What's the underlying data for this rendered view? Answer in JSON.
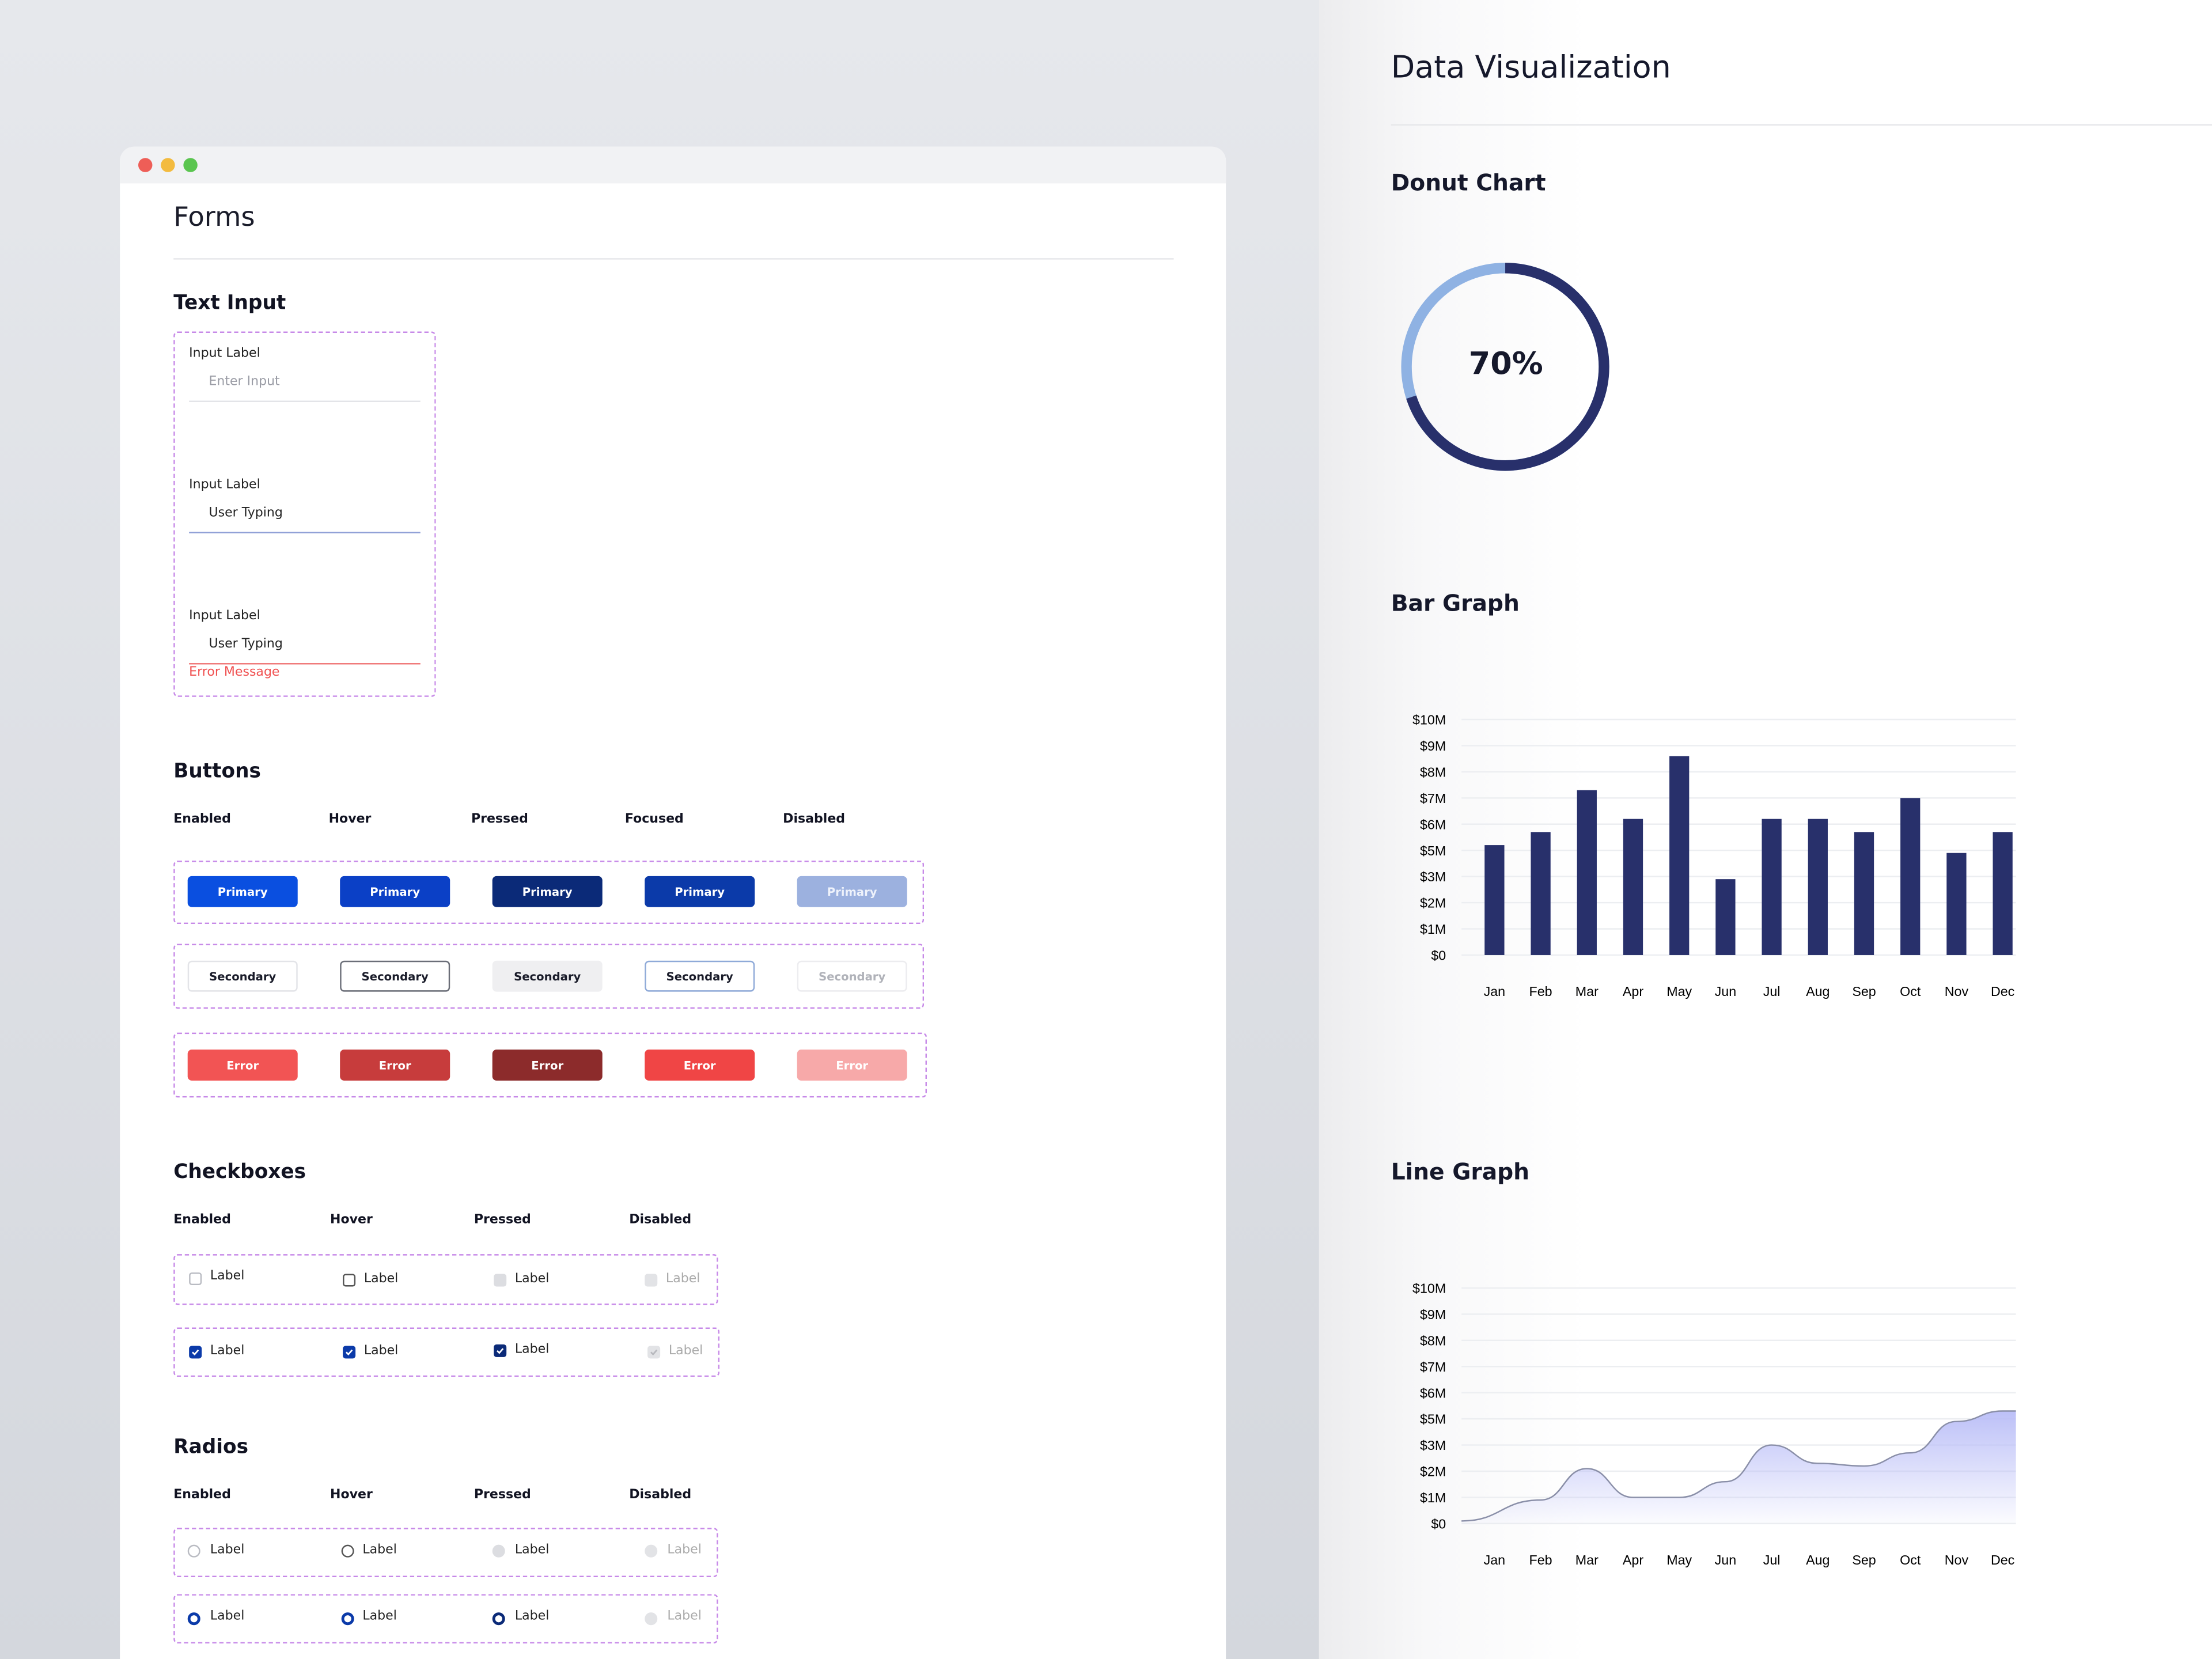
{
  "forms": {
    "title": "Forms",
    "text_input": {
      "heading": "Text Input",
      "fields": [
        {
          "label": "Input Label",
          "value": "Enter Input",
          "state": "placeholder"
        },
        {
          "label": "Input Label",
          "value": "User Typing",
          "state": "focused"
        },
        {
          "label": "Input Label",
          "value": "User Typing",
          "state": "error",
          "error": "Error Message"
        }
      ]
    },
    "buttons": {
      "heading": "Buttons",
      "columns": [
        "Enabled",
        "Hover",
        "Pressed",
        "Focused",
        "Disabled"
      ],
      "rows": [
        {
          "label": "Primary",
          "styles": [
            {
              "bg": "#0a4fe0",
              "fg": "#ffffff",
              "border": "none"
            },
            {
              "bg": "#0b40c6",
              "fg": "#ffffff",
              "border": "none"
            },
            {
              "bg": "#0b2a78",
              "fg": "#ffffff",
              "border": "none"
            },
            {
              "bg": "#0b3aa9",
              "fg": "#ffffff",
              "border": "none"
            },
            {
              "bg": "#9cb1df",
              "fg": "#eef2fb",
              "border": "none"
            }
          ]
        },
        {
          "label": "Secondary",
          "styles": [
            {
              "bg": "#ffffff",
              "fg": "#1a1c2a",
              "border": "#e3e4e8"
            },
            {
              "bg": "#ffffff",
              "fg": "#1a1c2a",
              "border": "#6b6e78"
            },
            {
              "bg": "#efeff1",
              "fg": "#1a1c2a",
              "border": "#efeff1"
            },
            {
              "bg": "#ffffff",
              "fg": "#1a1c2a",
              "border": "#8faad8"
            },
            {
              "bg": "#ffffff",
              "fg": "#b0b2b9",
              "border": "#ececef"
            }
          ]
        },
        {
          "label": "Error",
          "styles": [
            {
              "bg": "#f25454",
              "fg": "#ffffff",
              "border": "none"
            },
            {
              "bg": "#c73c3c",
              "fg": "#ffffff",
              "border": "none"
            },
            {
              "bg": "#8c2b2b",
              "fg": "#ffffff",
              "border": "none"
            },
            {
              "bg": "#f04545",
              "fg": "#ffffff",
              "border": "none"
            },
            {
              "bg": "#f7a9a9",
              "fg": "#ffffff",
              "border": "none"
            }
          ]
        }
      ]
    },
    "checkboxes": {
      "heading": "Checkboxes",
      "columns": [
        "Enabled",
        "Hover",
        "Pressed",
        "Disabled"
      ],
      "label": "Label"
    },
    "radios": {
      "heading": "Radios",
      "columns": [
        "Enabled",
        "Hover",
        "Pressed",
        "Disabled"
      ],
      "label": "Label"
    }
  },
  "dataviz": {
    "title": "Data Visualization",
    "donut": {
      "heading": "Donut Chart",
      "percent_label": "70%",
      "value": 70,
      "fg": "#28306b",
      "bg": "#8fb2e3"
    },
    "bar": {
      "heading": "Bar Graph"
    },
    "line": {
      "heading": "Line Graph"
    }
  },
  "chart_data": [
    {
      "type": "pie",
      "title": "Donut Chart",
      "values": [
        70,
        30
      ],
      "label": "70%"
    },
    {
      "type": "bar",
      "title": "Bar Graph",
      "categories": [
        "Jan",
        "Feb",
        "Mar",
        "Apr",
        "May",
        "Jun",
        "Jul",
        "Aug",
        "Sep",
        "Oct",
        "Nov",
        "Dec"
      ],
      "y_ticks": [
        "$0",
        "$1M",
        "$2M",
        "$3M",
        "$5M",
        "$6M",
        "$7M",
        "$8M",
        "$9M",
        "$10M"
      ],
      "values": [
        4.2,
        4.7,
        6.3,
        5.2,
        7.6,
        2.9,
        5.2,
        5.2,
        4.7,
        6.0,
        3.9,
        4.7
      ],
      "color": "#28306b",
      "grid": true
    },
    {
      "type": "area",
      "title": "Line Graph",
      "categories": [
        "Jan",
        "Feb",
        "Mar",
        "Apr",
        "May",
        "Jun",
        "Jul",
        "Aug",
        "Sep",
        "Oct",
        "Nov",
        "Dec"
      ],
      "y_ticks": [
        "$0",
        "$1M",
        "$2M",
        "$3M",
        "$5M",
        "$6M",
        "$7M",
        "$8M",
        "$9M",
        "$10M"
      ],
      "values": [
        0.1,
        0.9,
        2.1,
        1.0,
        1.0,
        1.6,
        3.0,
        2.3,
        2.2,
        2.7,
        3.9,
        4.3
      ],
      "color": "#8a8fa8",
      "fill": "#b9bdf7",
      "grid": true
    }
  ]
}
